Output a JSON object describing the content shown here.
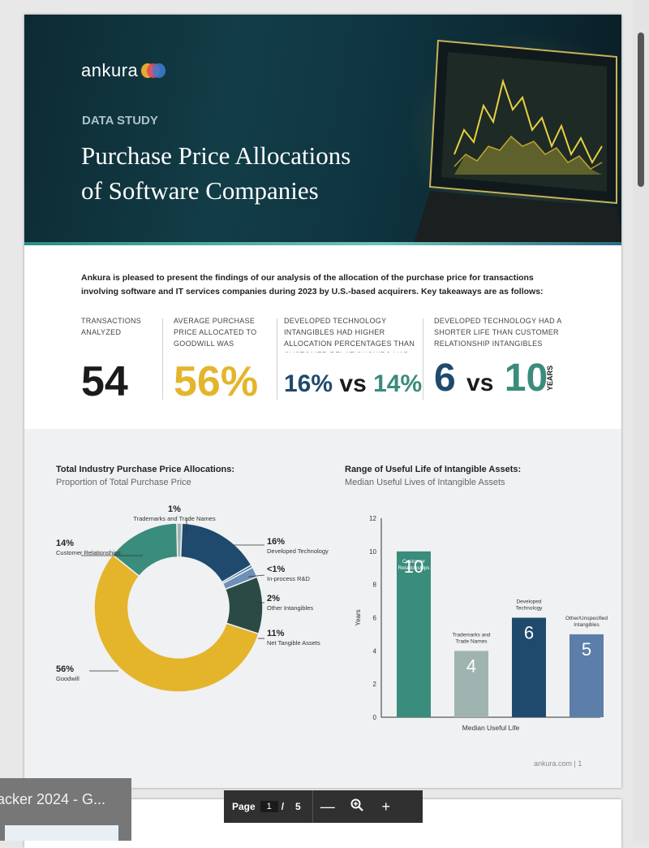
{
  "viewer": {
    "toolbar": {
      "page_label": "Page",
      "current_page": "1",
      "separator": "/",
      "total_pages": "5",
      "zoom_out": "—",
      "zoom_in": "+"
    },
    "tab_preview": {
      "title": "acker 2024 - G..."
    }
  },
  "doc": {
    "brand": "ankura",
    "eyebrow": "DATA STUDY",
    "title_line1": "Purchase Price Allocations",
    "title_line2": "of Software Companies",
    "intro": "Ankura is pleased to present the findings of our analysis of the allocation of the purchase price for transactions involving software and IT services companies during 2023 by U.S.-based acquirers. Key takeaways are as follows:",
    "stats": [
      {
        "label": "TRANSACTIONS ANALYZED",
        "value": "54"
      },
      {
        "label": "AVERAGE PURCHASE PRICE ALLOCATED TO GOODWILL WAS",
        "value": "56%"
      },
      {
        "label": "DEVELOPED TECHNOLOGY INTANGIBLES HAD HIGHER ALLOCATION PERCENTAGES THAN CUSTOMER RELATIONSHIPS HAD",
        "value_a": "16%",
        "vs": "vs",
        "value_b": "14%"
      },
      {
        "label": "DEVELOPED TECHNOLOGY HAD A SHORTER LIFE THAN CUSTOMER RELATIONSHIP INTANGIBLES",
        "value_a": "6",
        "vs": "vs",
        "value_b": "10",
        "unit": "YEARS"
      }
    ],
    "footer": "ankura.com | 1"
  },
  "colors": {
    "navy": "#1f4a6e",
    "gold": "#e4b52b",
    "teal": "#3a8c7c",
    "dark": "#1b1b1b"
  },
  "chart_data": [
    {
      "type": "pie",
      "title": "Total Industry Purchase Price Allocations:",
      "subtitle": "Proportion of Total Purchase Price",
      "donut": true,
      "slices": [
        {
          "name": "Trademarks and Trade Names",
          "pct": "1%",
          "value": 1,
          "color": "#9fb4b0"
        },
        {
          "name": "Developed Technology",
          "pct": "16%",
          "value": 16,
          "color": "#1f4a6e"
        },
        {
          "name": "In-process R&D",
          "pct": "<1%",
          "value": 0.5,
          "color": "#2e6f9a"
        },
        {
          "name": "Other Intangibles",
          "pct": "2%",
          "value": 2,
          "color": "#6d8fb8"
        },
        {
          "name": "Net Tangible Assets",
          "pct": "11%",
          "value": 11,
          "color": "#2b4a46"
        },
        {
          "name": "Goodwill",
          "pct": "56%",
          "value": 56,
          "color": "#e4b52b"
        },
        {
          "name": "Customer Relationships",
          "pct": "14%",
          "value": 14,
          "color": "#3a8c7c"
        }
      ]
    },
    {
      "type": "bar",
      "title": "Range of Useful Life of Intangible Assets:",
      "subtitle": "Median Useful Lives of Intangible Assets",
      "categories": [
        "Customer Relationships",
        "Trademarks and Trade Names",
        "Developed Technology",
        "Other/Unspecified Intangibles"
      ],
      "values": [
        10,
        4,
        6,
        5
      ],
      "colors": [
        "#3a8c7c",
        "#9fb4b0",
        "#1f4a6e",
        "#5b7fa8"
      ],
      "ylabel": "Years",
      "xlabel": "Median Useful Life",
      "ylim": [
        0,
        12
      ],
      "yticks": [
        0,
        2,
        4,
        6,
        8,
        10,
        12
      ]
    }
  ]
}
